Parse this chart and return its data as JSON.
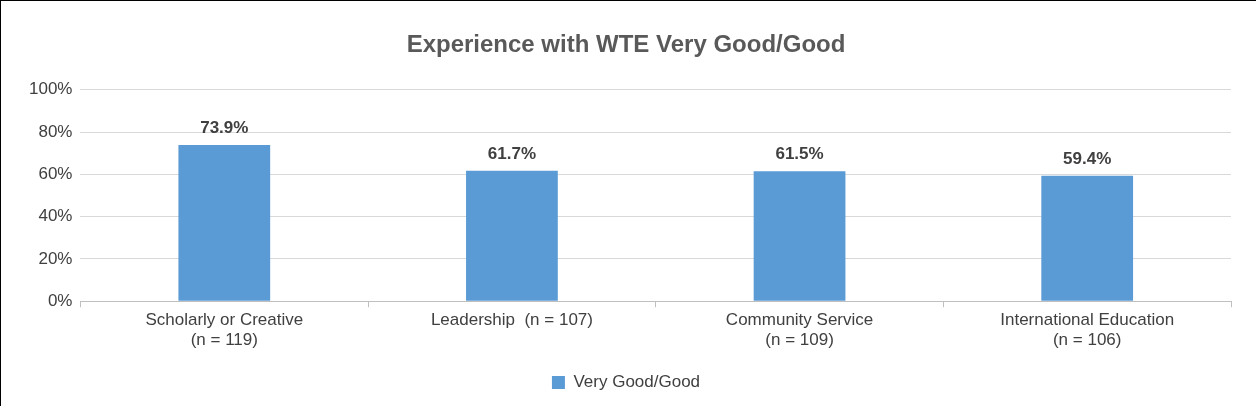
{
  "chart_data": {
    "type": "bar",
    "title": "Experience with WTE Very Good/Good",
    "categories": [
      "Scholarly or Creative\n(n = 119)",
      "Leadership  (n = 107)",
      "Community Service\n(n = 109)",
      "International Education\n(n = 106)"
    ],
    "series": [
      {
        "name": "Very Good/Good",
        "color": "#5b9bd5",
        "values": [
          73.9,
          61.7,
          61.5,
          59.4
        ],
        "value_labels": [
          "73.9%",
          "61.7%",
          "61.5%",
          "59.4%"
        ]
      }
    ],
    "ylim": [
      0,
      100
    ],
    "yticks": [
      {
        "value": 0,
        "label": "0%"
      },
      {
        "value": 20,
        "label": "20%"
      },
      {
        "value": 40,
        "label": "40%"
      },
      {
        "value": 60,
        "label": "60%"
      },
      {
        "value": 80,
        "label": "80%"
      },
      {
        "value": 100,
        "label": "100%"
      }
    ],
    "grid": "y",
    "legend": "bottom"
  }
}
